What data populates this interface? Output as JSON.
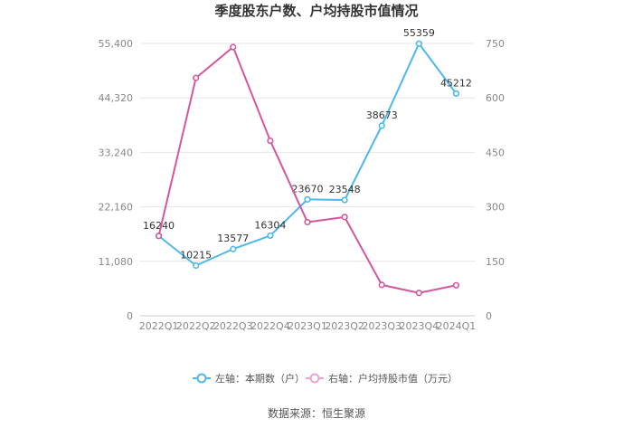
{
  "chart_data": {
    "type": "line",
    "title": "季度股东户数、户均持股市值情况",
    "categories": [
      "2022Q1",
      "2022Q2",
      "2022Q3",
      "2022Q4",
      "2023Q1",
      "2023Q2",
      "2023Q3",
      "2023Q4",
      "2024Q1"
    ],
    "left_axis": {
      "ticks": [
        "0",
        "11,080",
        "22,160",
        "33,240",
        "44,320",
        "55,400"
      ],
      "ylim": [
        0,
        55400
      ]
    },
    "right_axis": {
      "ticks": [
        "0",
        "150",
        "300",
        "450",
        "600",
        "750"
      ],
      "ylim": [
        0,
        750
      ]
    },
    "series": [
      {
        "name": "左轴：本期数（户）",
        "axis": "left",
        "color": "#4DB8EA",
        "values": [
          16240,
          10215,
          13577,
          16304,
          23670,
          23548,
          38673,
          55359,
          45212
        ],
        "labels": [
          "16240",
          "10215",
          "13577",
          "16304",
          "23670",
          "23548",
          "38673",
          "55359",
          "45212"
        ]
      },
      {
        "name": "右轴：户均持股市值（万元）",
        "axis": "right",
        "color": "#D4569E",
        "values": [
          220,
          655,
          740,
          482,
          258,
          272,
          85,
          63,
          84
        ]
      }
    ],
    "grid": true,
    "legend_position": "bottom"
  },
  "source": "数据来源：恒生聚源"
}
